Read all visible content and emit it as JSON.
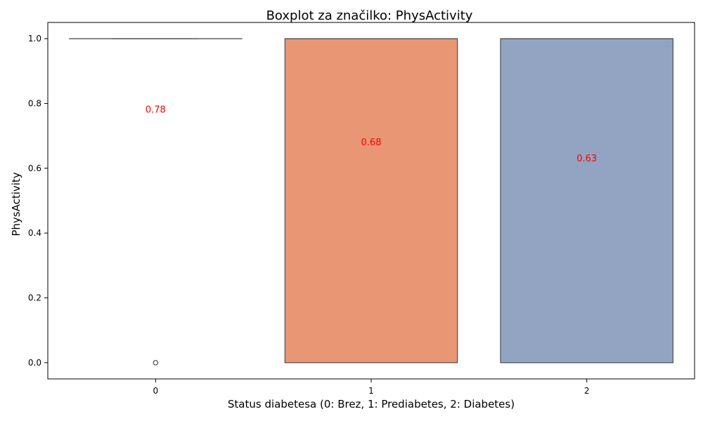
{
  "chart_data": {
    "type": "box",
    "title": "Boxplot za značilko: PhysActivity",
    "xlabel": "Status diabetesa (0: Brez, 1: Prediabetes, 2: Diabetes)",
    "ylabel": "PhysActivity",
    "categories": [
      "0",
      "1",
      "2"
    ],
    "ylim": [
      -0.05,
      1.05
    ],
    "yticks": [
      0.0,
      0.2,
      0.4,
      0.6,
      0.8,
      1.0
    ],
    "ytick_labels": [
      "0.0",
      "0.2",
      "0.4",
      "0.6",
      "0.8",
      "1.0"
    ],
    "boxes": [
      {
        "category": "0",
        "q1": 1.0,
        "median": 1.0,
        "q3": 1.0,
        "whisker_low": 1.0,
        "whisker_high": 1.0,
        "outliers": [
          0.0
        ],
        "color": "#66c2a5"
      },
      {
        "category": "1",
        "q1": 0.0,
        "median": 1.0,
        "q3": 1.0,
        "whisker_low": 0.0,
        "whisker_high": 1.0,
        "outliers": [],
        "color": "#e99675"
      },
      {
        "category": "2",
        "q1": 0.0,
        "median": 1.0,
        "q3": 1.0,
        "whisker_low": 0.0,
        "whisker_high": 1.0,
        "outliers": [],
        "color": "#93a4c3"
      }
    ],
    "mean_labels": [
      {
        "category": "0",
        "value": 0.78,
        "text": "0.78"
      },
      {
        "category": "1",
        "value": 0.68,
        "text": "0.68"
      },
      {
        "category": "2",
        "value": 0.63,
        "text": "0.63"
      }
    ],
    "mean_label_color": "#ff0000",
    "grid": false,
    "legend": "none"
  }
}
